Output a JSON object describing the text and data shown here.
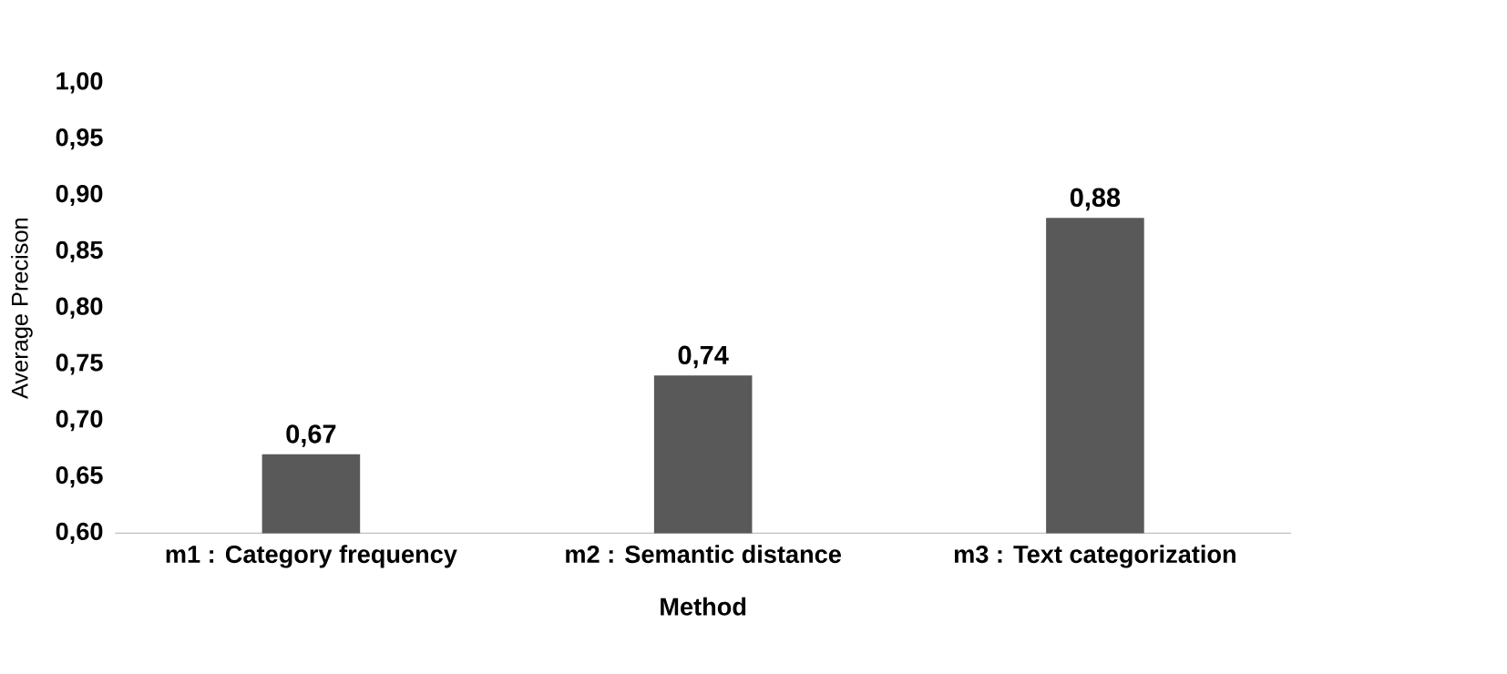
{
  "chart_data": {
    "type": "bar",
    "xlabel": "Method",
    "ylabel": "Average Precison",
    "categories": [
      "m1 : Category frequency",
      "m2 : Semantic distance",
      "m3 : Text categorization"
    ],
    "values": [
      0.67,
      0.74,
      0.88
    ],
    "value_labels": [
      "0,67",
      "0,74",
      "0,88"
    ],
    "color": "#595959",
    "ylim": [
      0.6,
      1.0
    ],
    "yticks": [
      {
        "value": 0.6,
        "label": "0,60"
      },
      {
        "value": 0.65,
        "label": "0,65"
      },
      {
        "value": 0.7,
        "label": "0,70"
      },
      {
        "value": 0.75,
        "label": "0,75"
      },
      {
        "value": 0.8,
        "label": "0,80"
      },
      {
        "value": 0.85,
        "label": "0,85"
      },
      {
        "value": 0.9,
        "label": "0,90"
      },
      {
        "value": 0.95,
        "label": "0,95"
      },
      {
        "value": 1.0,
        "label": "1,00"
      }
    ],
    "grid": false
  }
}
